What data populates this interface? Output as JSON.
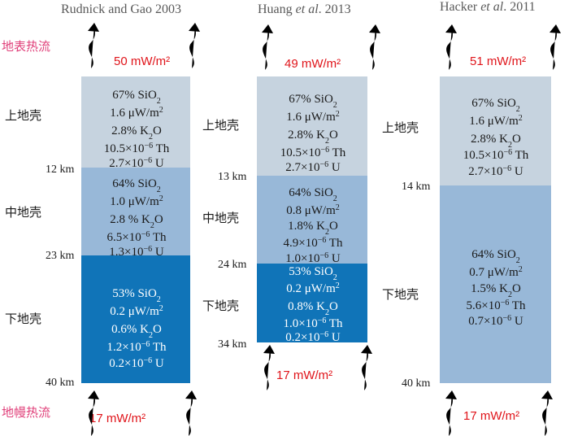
{
  "side_labels": {
    "surface": "地表热流",
    "mantle": "地幔热流"
  },
  "layer_names": {
    "upper": "上地壳",
    "middle": "中地壳",
    "lower": "下地壳"
  },
  "colors": {
    "upper_crust": "#c6d3df",
    "middle_crust": "#98b8d8",
    "lower_crust": "#1074b8",
    "heat_flow": "#e0141a",
    "side_label": "#e0407a"
  },
  "columns": [
    {
      "title": "Rudnick and Gao 2003",
      "surface_flux": "50 mW/m²",
      "mantle_flux": "17 mW/m²",
      "depths": [
        "12 km",
        "23 km",
        "40 km"
      ],
      "layers": [
        {
          "name": "上地壳",
          "sio2": "67% SiO2",
          "heat_production": "1.6 μW/m2",
          "k2o": "2.8% K2O",
          "th": "10.5×10−6 Th",
          "u": "2.7×10−6 U"
        },
        {
          "name": "中地壳",
          "sio2": "64% SiO2",
          "heat_production": "1.0 μW/m2",
          "k2o": "2.8 % K2O",
          "th": "6.5×10−6 Th",
          "u": "1.3×10−6 U"
        },
        {
          "name": "下地壳",
          "sio2": "53% SiO2",
          "heat_production": "0.2 μW/m2",
          "k2o": "0.6% K2O",
          "th": "1.2×10−6 Th",
          "u": "0.2×10−6 U"
        }
      ]
    },
    {
      "title_author": "Huang ",
      "title_etal": "et al",
      "title_year": ". 2013",
      "surface_flux": "49 mW/m²",
      "mantle_flux": "17 mW/m²",
      "depths": [
        "13 km",
        "24 km",
        "34 km"
      ],
      "layers": [
        {
          "name": "上地壳",
          "sio2": "67% SiO2",
          "heat_production": "1.6 μW/m2",
          "k2o": "2.8% K2O",
          "th": "10.5×10−6 Th",
          "u": "2.7×10−6 U"
        },
        {
          "name": "中地壳",
          "sio2": "64% SiO2",
          "heat_production": "0.8 μW/m2",
          "k2o": "1.8% K2O",
          "th": "4.9×10−6 Th",
          "u": "1.0×10−6 U"
        },
        {
          "name": "下地壳",
          "sio2": "53% SiO2",
          "heat_production": "0.2 μW/m2",
          "k2o": "0.8% K2O",
          "th": "1.0×10−6 Th",
          "u": "0.2×10−6 U"
        }
      ]
    },
    {
      "title_author": "Hacker ",
      "title_etal": "et al",
      "title_year": ". 2011",
      "surface_flux": "51 mW/m²",
      "mantle_flux": "17 mW/m²",
      "depths": [
        "14 km",
        "40 km"
      ],
      "layers": [
        {
          "name": "上地壳",
          "sio2": "67% SiO2",
          "heat_production": "1.6 μW/m2",
          "k2o": "2.8% K2O",
          "th": "10.5×10−6 Th",
          "u": "2.7×10−6 U"
        },
        {
          "name": "下地壳",
          "sio2": "64% SiO2",
          "heat_production": "0.7 μW/m2",
          "k2o": "1.5% K2O",
          "th": "5.6×10−6 Th",
          "u": "0.7×10−6 U"
        }
      ]
    }
  ]
}
